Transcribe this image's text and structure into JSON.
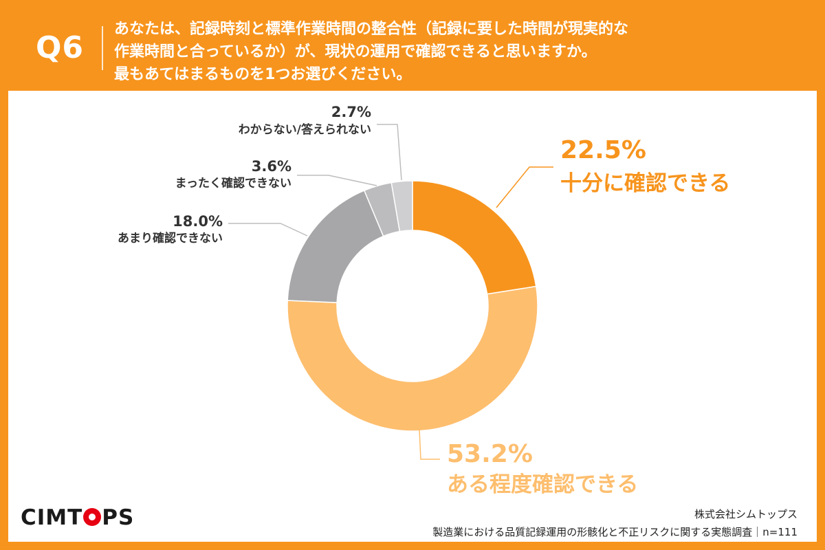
{
  "header": {
    "qnum": "Q6",
    "lines": [
      "あなたは、記録時刻と標準作業時間の整合性（記録に要した時間が現実的な",
      "作業時間と合っているか）が、現状の運用で確認できると思いますか。",
      "最もあてはまるものを1つお選びください。"
    ]
  },
  "colors": {
    "brand": "#f7941d",
    "slice_1": "#f7941d",
    "slice_2": "#fdbe6e",
    "slice_3": "#a7a7a9",
    "slice_4": "#bcbcbe",
    "slice_5": "#cfcfd1"
  },
  "chart_data": {
    "type": "pie",
    "style": "donut",
    "slices": [
      {
        "label": "十分に確認できる",
        "value": 22.5,
        "pct_text": "22.5%"
      },
      {
        "label": "ある程度確認できる",
        "value": 53.2,
        "pct_text": "53.2%"
      },
      {
        "label": "あまり確認できない",
        "value": 18.0,
        "pct_text": "18.0%"
      },
      {
        "label": "まったく確認できない",
        "value": 3.6,
        "pct_text": "3.6%"
      },
      {
        "label": "わからない/答えられない",
        "value": 2.7,
        "pct_text": "2.7%"
      }
    ]
  },
  "footer": {
    "logo": "CIMTOPS",
    "company": "株式会社シムトップス",
    "survey": "製造業における品質記録運用の形骸化と不正リスクに関する実態調査｜n=111"
  }
}
